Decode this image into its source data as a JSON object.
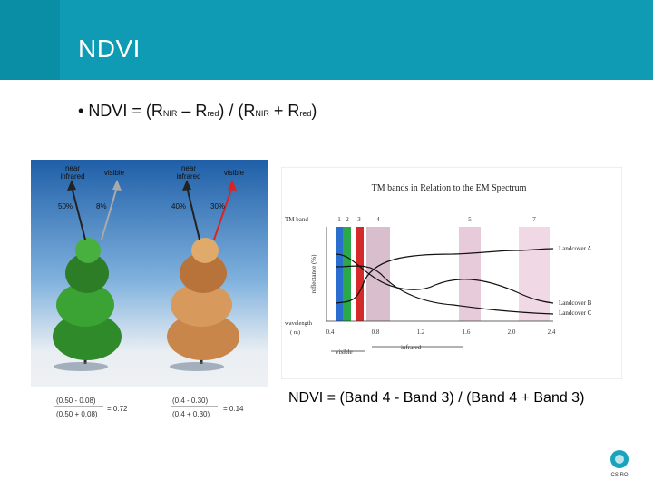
{
  "slide": {
    "title": "NDVI",
    "bullet": {
      "prefix": "NDVI = (R",
      "sub1": "NIR",
      "mid1": " – R",
      "sub2": "red",
      "mid2": ") / (R",
      "sub3": "NIR",
      "mid3": " + R",
      "sub4": "red",
      "suffix": ")"
    },
    "caption": "NDVI = (Band 4 - Band 3) / (Band 4 + Band 3)"
  },
  "tree_figure": {
    "left": {
      "near_label": [
        "near",
        "infrared"
      ],
      "visible_label": "visible",
      "nir_pct": "50%",
      "vis_pct": "8%",
      "formula_top": "(0.50 - 0.08)",
      "formula_bottom": "(0.50 + 0.08)",
      "result": "= 0.72"
    },
    "right": {
      "near_label": [
        "near",
        "infrared"
      ],
      "visible_label": "visible",
      "nir_pct": "40%",
      "vis_pct": "30%",
      "formula_top": "(0.4 - 0.30)",
      "formula_bottom": "(0.4 + 0.30)",
      "result": "= 0.14"
    }
  },
  "chart_data": {
    "type": "line",
    "title": "TM bands in Relation to the EM Spectrum",
    "band_label": "TM band",
    "bands": [
      "1",
      "2",
      "3",
      "4",
      "5",
      "7"
    ],
    "ylabel": "reflectance (%)",
    "xlabel_left": "wavelength",
    "xlabel_unit": "( m)",
    "x_ticks": [
      "0.4",
      "0.8",
      "1.2",
      "1.6",
      "2.0",
      "2.4"
    ],
    "regions": [
      "visible",
      "infrared"
    ],
    "series": [
      {
        "name": "Landcover A",
        "color": "#000000"
      },
      {
        "name": "Landcover B",
        "color": "#000000"
      },
      {
        "name": "Landcover C",
        "color": "#000000"
      }
    ]
  },
  "logo": {
    "text": "CSIRO"
  }
}
